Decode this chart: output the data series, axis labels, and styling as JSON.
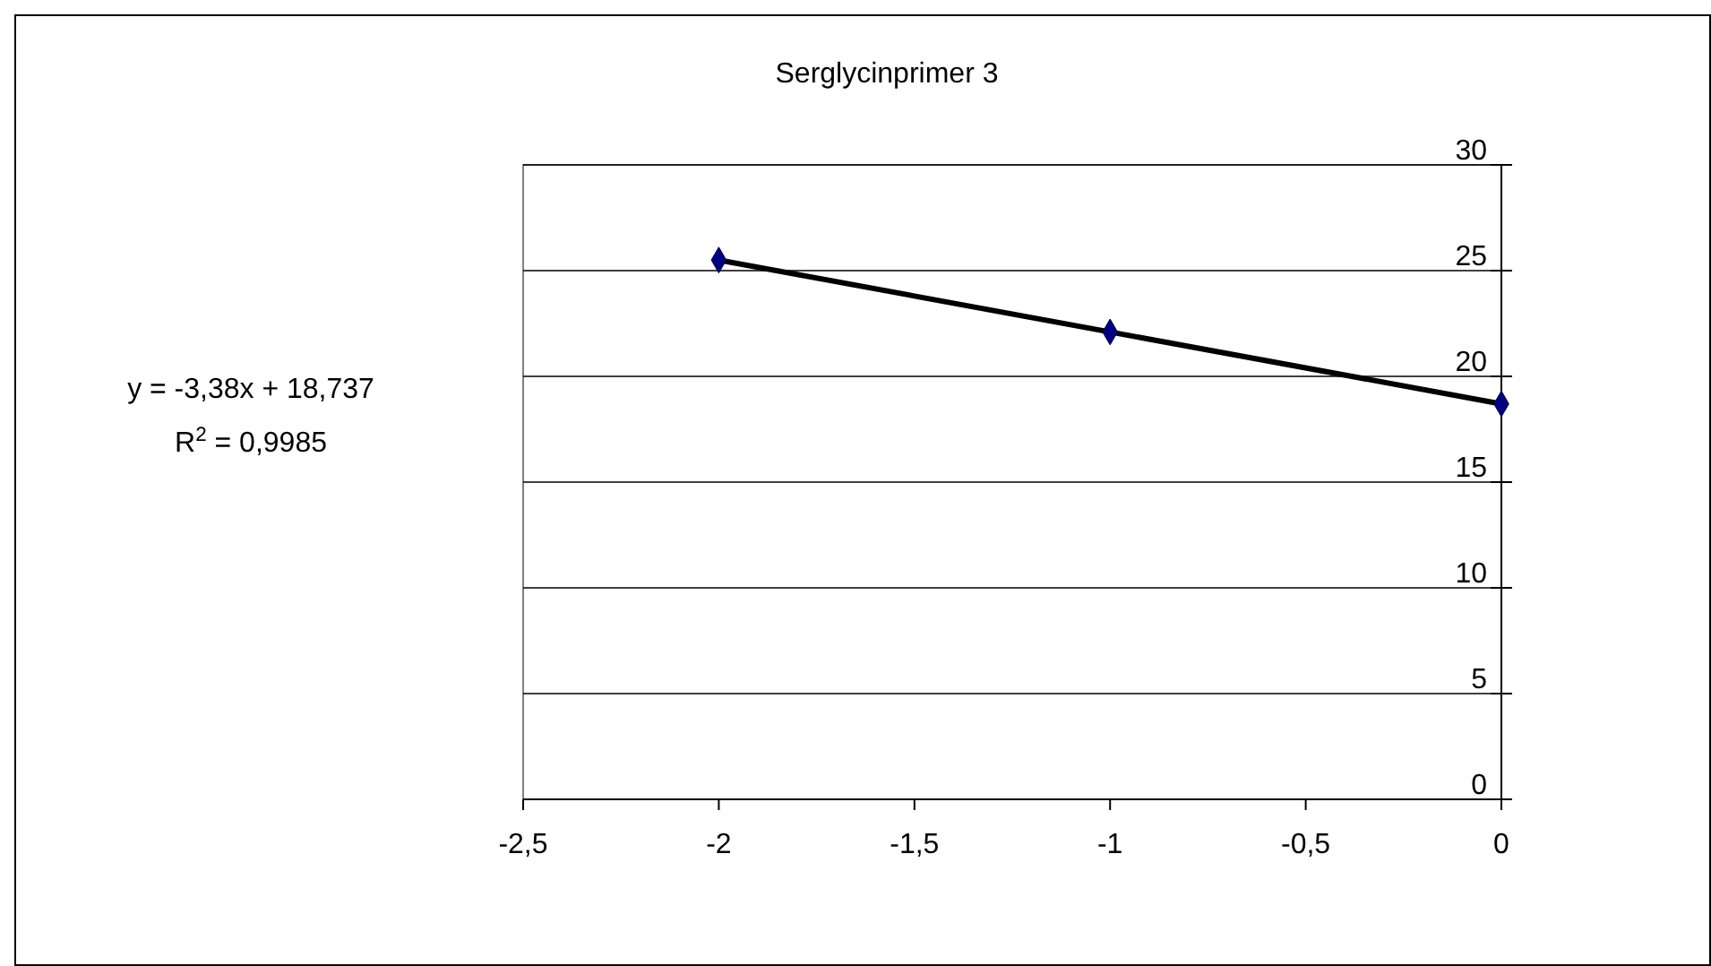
{
  "chart_data": {
    "type": "scatter",
    "title": "Serglycinprimer 3",
    "annotations": [
      "y = -3,38x + 18,737",
      "R$^{2}$ = 0,9985"
    ],
    "series": [
      {
        "color": "#000080",
        "marker": "diamond",
        "x": [
          -2,
          -1,
          0
        ],
        "values": [
          25.5,
          22.1,
          18.7
        ]
      },
      {
        "type": "line",
        "color": "#000000",
        "marker": "none",
        "x": [
          -2,
          0
        ],
        "values": [
          25.5,
          18.7
        ]
      }
    ],
    "xlim": [
      -2.5,
      0
    ],
    "xticks": [
      {
        "value": -2.5,
        "label": "-2,5"
      },
      -2,
      {
        "value": -1.5,
        "label": "-1,5"
      },
      -1,
      {
        "value": -0.5,
        "label": "-0,5"
      },
      0
    ],
    "ylim": [
      0,
      30
    ],
    "yticks": [
      0,
      5,
      10,
      15,
      20,
      25,
      30
    ],
    "grid": "y"
  }
}
